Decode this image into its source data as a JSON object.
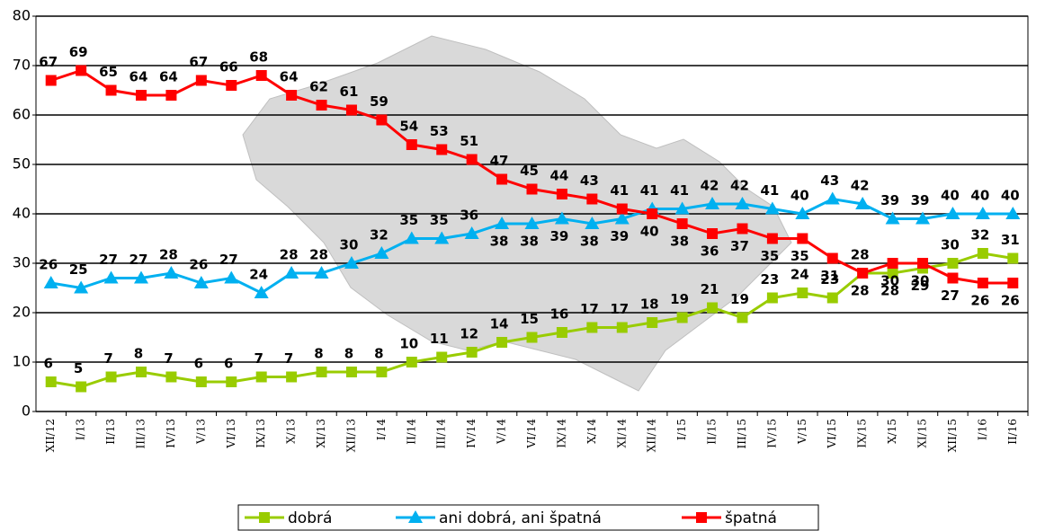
{
  "chart_data": {
    "type": "line",
    "categories": [
      "XII/12",
      "I/13",
      "II/13",
      "III/13",
      "IV/13",
      "V/13",
      "VI/13",
      "IX/13",
      "X/13",
      "XI/13",
      "XII/13",
      "I/14",
      "II/14",
      "III/14",
      "IV/14",
      "V/14",
      "VI/14",
      "IX/14",
      "X/14",
      "XI/14",
      "XII/14",
      "I/15",
      "II/15",
      "III/15",
      "IV/15",
      "V/15",
      "VI/15",
      "IX/15",
      "X/15",
      "XI/15",
      "XII/15",
      "I/16",
      "II/16"
    ],
    "series": [
      {
        "name": "dobrá",
        "color": "#99cc00",
        "marker": "square",
        "values": [
          6,
          5,
          7,
          8,
          7,
          6,
          6,
          7,
          7,
          8,
          8,
          8,
          10,
          11,
          12,
          14,
          15,
          16,
          17,
          17,
          18,
          19,
          21,
          19,
          23,
          24,
          23,
          28,
          28,
          29,
          30,
          32,
          31
        ]
      },
      {
        "name": "ani dobrá, ani špatná",
        "color": "#00b0f0",
        "marker": "triangle",
        "values": [
          26,
          25,
          27,
          27,
          28,
          26,
          27,
          24,
          28,
          28,
          30,
          32,
          35,
          35,
          36,
          38,
          38,
          39,
          38,
          39,
          41,
          41,
          42,
          42,
          41,
          40,
          43,
          42,
          39,
          39,
          40,
          40,
          40
        ]
      },
      {
        "name": "špatná",
        "color": "#ff0000",
        "marker": "square",
        "values": [
          67,
          69,
          65,
          64,
          64,
          67,
          66,
          68,
          64,
          62,
          61,
          59,
          54,
          53,
          51,
          47,
          45,
          44,
          43,
          41,
          40,
          38,
          36,
          37,
          35,
          35,
          31,
          28,
          30,
          30,
          27,
          26,
          26
        ]
      }
    ],
    "ylim": [
      0,
      80
    ],
    "yticks": [
      0,
      10,
      20,
      30,
      40,
      50,
      60,
      70,
      80
    ],
    "grid": true,
    "legend": "bottom"
  }
}
